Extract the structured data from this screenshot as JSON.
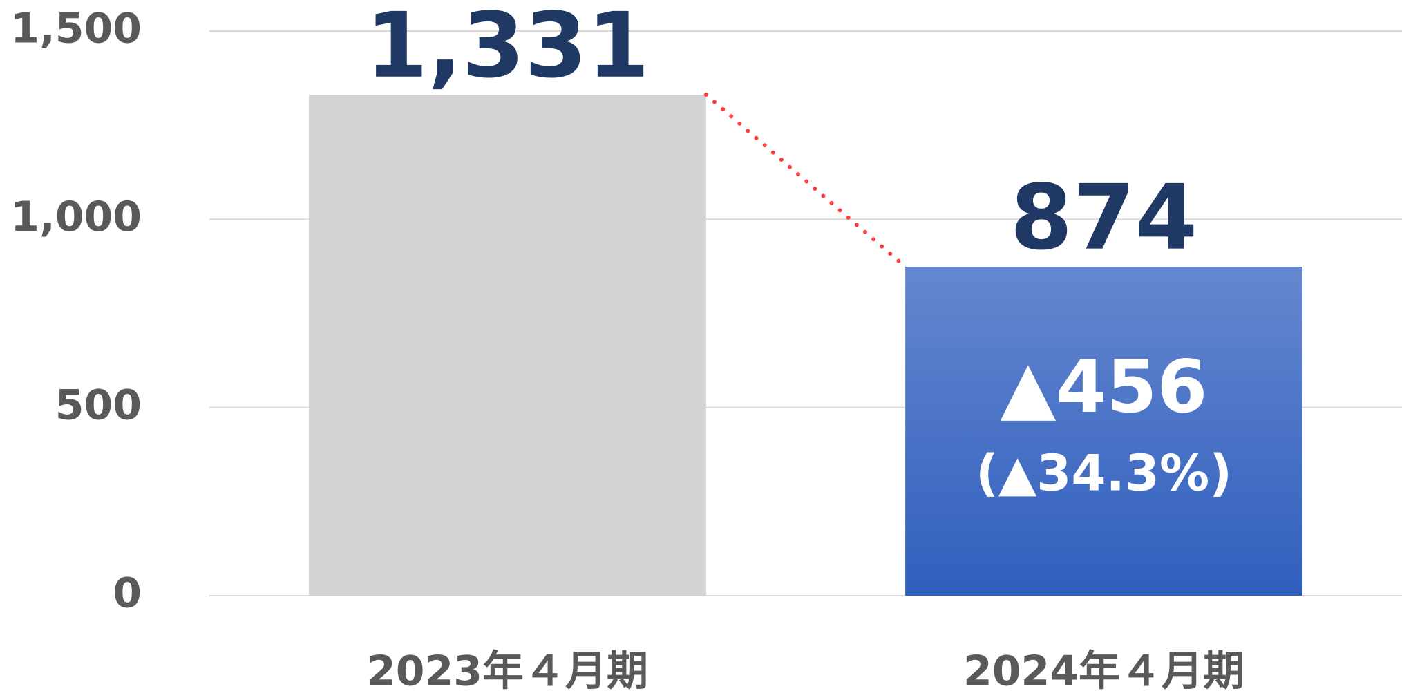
{
  "chart_data": {
    "type": "bar",
    "categories": [
      "2023年４月期",
      "2024年４月期"
    ],
    "values": [
      1331,
      874
    ],
    "value_labels": [
      "1,331",
      "874"
    ],
    "colors": [
      "#d3d3d3",
      "#3a68c6"
    ],
    "ylim": [
      0,
      1500
    ],
    "yticks": [
      0,
      500,
      {
        "value": 1000,
        "label": "1,000"
      },
      {
        "value": 1500,
        "label": "1,500"
      }
    ],
    "grid": true,
    "annotations": [
      "▲456",
      "(▲34.3%)"
    ]
  }
}
